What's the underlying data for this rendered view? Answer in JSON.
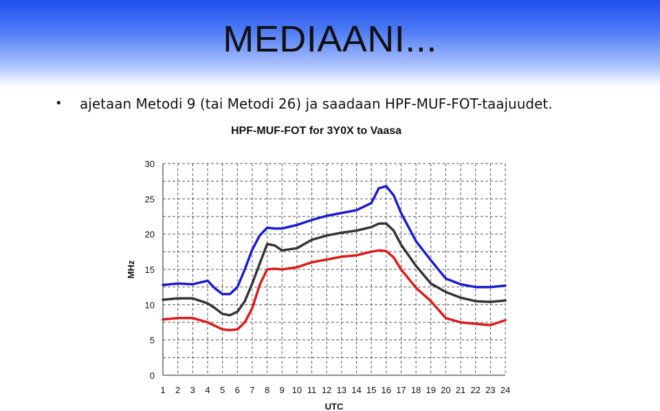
{
  "slide": {
    "title": "MEDIAANI...",
    "bullet_symbol": "•",
    "bullet_text": "ajetaan Metodi 9 (tai Metodi 26) ja saadaan HPF-MUF-FOT-taajuudet."
  },
  "colors": {
    "header_top": "#1f4ff0",
    "series_hpf": "#1a1ad4",
    "series_muf": "#333333",
    "series_fot": "#dd1a1a",
    "grid": "#555555"
  },
  "chart_data": {
    "type": "line",
    "title": "HPF-MUF-FOT for 3Y0X to Vaasa",
    "xlabel": "UTC",
    "ylabel": "MHz",
    "xlim": [
      1,
      24
    ],
    "ylim": [
      0,
      30
    ],
    "x_ticks": [
      "1",
      "2",
      "3",
      "4",
      "5",
      "6",
      "7",
      "8",
      "9",
      "10",
      "11",
      "12",
      "13",
      "14",
      "15",
      "16",
      "17",
      "18",
      "19",
      "20",
      "21",
      "22",
      "23",
      "24"
    ],
    "y_ticks": [
      "0",
      "5",
      "10",
      "15",
      "20",
      "25",
      "30"
    ],
    "grid": true,
    "series": [
      {
        "color": "#1a1ad4",
        "x": [
          1,
          2,
          3,
          4,
          4.5,
          5,
          5.5,
          6,
          6.5,
          7,
          7.5,
          8,
          8.5,
          9,
          10,
          11,
          12,
          13,
          14,
          15,
          15.5,
          16,
          16.5,
          17,
          18,
          19,
          20,
          21,
          22,
          23,
          24
        ],
        "y": [
          12.8,
          13,
          12.9,
          13.4,
          12.3,
          11.5,
          11.5,
          12.5,
          15,
          17.8,
          19.8,
          20.9,
          20.8,
          20.8,
          21.3,
          22,
          22.6,
          23,
          23.4,
          24.4,
          26.5,
          26.8,
          25.5,
          23,
          19,
          16.3,
          13.7,
          12.9,
          12.5,
          12.5,
          12.7
        ]
      },
      {
        "color": "#333333",
        "x": [
          1,
          2,
          3,
          4,
          4.5,
          5,
          5.5,
          6,
          6.5,
          7,
          7.5,
          8,
          8.5,
          9,
          10,
          11,
          12,
          13,
          14,
          15,
          15.5,
          16,
          16.5,
          17,
          18,
          19,
          20,
          21,
          22,
          23,
          24
        ],
        "y": [
          10.7,
          10.9,
          10.9,
          10.2,
          9.5,
          8.7,
          8.5,
          9,
          10.5,
          13,
          15.8,
          18.6,
          18.4,
          17.7,
          18,
          19.2,
          19.8,
          20.2,
          20.5,
          21,
          21.5,
          21.5,
          20.5,
          18.5,
          15.5,
          13,
          11.8,
          11,
          10.5,
          10.4,
          10.6
        ]
      },
      {
        "color": "#dd1a1a",
        "x": [
          1,
          2,
          3,
          4,
          4.5,
          5,
          5.5,
          6,
          6.5,
          7,
          7.5,
          8,
          8.5,
          9,
          10,
          11,
          12,
          13,
          14,
          15,
          15.5,
          16,
          16.5,
          17,
          18,
          19,
          20,
          21,
          22,
          23,
          24
        ],
        "y": [
          7.9,
          8.1,
          8.1,
          7.5,
          7,
          6.5,
          6.4,
          6.5,
          7.5,
          9.5,
          12.8,
          15,
          15.1,
          15,
          15.3,
          16,
          16.4,
          16.8,
          17,
          17.5,
          17.7,
          17.6,
          16.7,
          15,
          12.4,
          10.5,
          8.1,
          7.5,
          7.3,
          7.1,
          7.8
        ]
      }
    ]
  }
}
